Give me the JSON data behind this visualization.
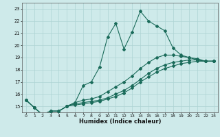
{
  "xlabel": "Humidex (Indice chaleur)",
  "bg_color": "#ceeaea",
  "line_color": "#1a6b5a",
  "grid_color": "#aed4d4",
  "xlim": [
    -0.5,
    23.5
  ],
  "ylim": [
    14.5,
    23.5
  ],
  "yticks": [
    15,
    16,
    17,
    18,
    19,
    20,
    21,
    22,
    23
  ],
  "xticks": [
    0,
    1,
    2,
    3,
    4,
    5,
    6,
    7,
    8,
    9,
    10,
    11,
    12,
    13,
    14,
    15,
    16,
    17,
    18,
    19,
    20,
    21,
    22,
    23
  ],
  "line1_x": [
    0,
    1,
    2,
    3,
    4,
    5,
    6,
    7,
    8,
    9,
    10,
    11,
    12,
    13,
    14,
    15,
    16,
    17,
    18,
    19,
    20,
    21,
    22,
    23
  ],
  "line1_y": [
    15.5,
    14.9,
    14.3,
    14.6,
    14.6,
    15.0,
    15.3,
    16.7,
    17.0,
    18.2,
    20.7,
    21.8,
    19.7,
    21.1,
    22.8,
    22.0,
    21.6,
    21.2,
    19.8,
    19.2,
    19.0,
    18.8,
    18.7,
    18.7
  ],
  "line2_x": [
    0,
    1,
    2,
    3,
    4,
    5,
    6,
    7,
    8,
    9,
    10,
    11,
    12,
    13,
    14,
    15,
    16,
    17,
    18,
    19,
    20,
    21,
    22,
    23
  ],
  "line2_y": [
    15.5,
    14.9,
    14.3,
    14.6,
    14.6,
    15.0,
    15.3,
    15.5,
    15.6,
    15.8,
    16.2,
    16.6,
    17.0,
    17.5,
    18.1,
    18.6,
    19.0,
    19.2,
    19.2,
    19.1,
    19.0,
    18.9,
    18.7,
    18.7
  ],
  "line3_x": [
    0,
    1,
    2,
    3,
    4,
    5,
    6,
    7,
    8,
    9,
    10,
    11,
    12,
    13,
    14,
    15,
    16,
    17,
    18,
    19,
    20,
    21,
    22,
    23
  ],
  "line3_y": [
    15.5,
    14.9,
    14.3,
    14.6,
    14.6,
    15.0,
    15.2,
    15.3,
    15.4,
    15.5,
    15.7,
    16.0,
    16.3,
    16.7,
    17.2,
    17.7,
    18.1,
    18.4,
    18.6,
    18.7,
    18.8,
    18.8,
    18.7,
    18.7
  ],
  "line4_x": [
    0,
    1,
    2,
    3,
    4,
    5,
    6,
    7,
    8,
    9,
    10,
    11,
    12,
    13,
    14,
    15,
    16,
    17,
    18,
    19,
    20,
    21,
    22,
    23
  ],
  "line4_y": [
    15.5,
    14.9,
    14.3,
    14.6,
    14.6,
    15.0,
    15.1,
    15.2,
    15.3,
    15.4,
    15.6,
    15.8,
    16.1,
    16.5,
    17.0,
    17.4,
    17.8,
    18.1,
    18.3,
    18.5,
    18.6,
    18.7,
    18.7,
    18.7
  ]
}
